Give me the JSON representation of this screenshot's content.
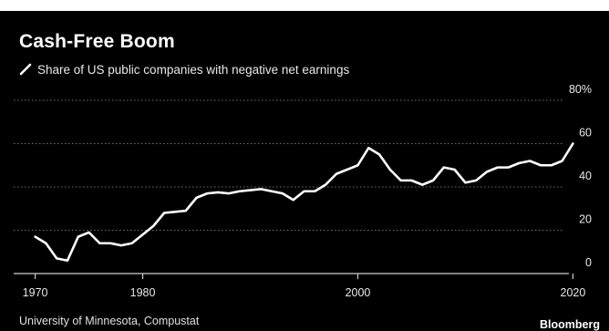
{
  "title": "Cash-Free Boom",
  "source": "University of Minnesota, Compustat",
  "brand": "Bloomberg",
  "colors": {
    "background": "#000000",
    "line": "#ffffff",
    "grid": "#6e6e6e"
  },
  "chart_data": {
    "type": "line",
    "title": "Cash-Free Boom",
    "xlabel": "",
    "ylabel": "",
    "xlim": [
      1968,
      2022
    ],
    "ylim": [
      0,
      80
    ],
    "x_ticks": [
      1970,
      1980,
      2000,
      2020
    ],
    "x_tick_labels": [
      "1970",
      "1980",
      "2000",
      "2020"
    ],
    "y_ticks": [
      0,
      20,
      40,
      60,
      80
    ],
    "y_tick_labels": [
      "0",
      "20",
      "40",
      "60",
      "80%"
    ],
    "grid": "horizontal dotted",
    "legend_placement": "top-left",
    "series": [
      {
        "name": "Share of US public companies with negative net earnings",
        "color": "#ffffff",
        "x": [
          1970,
          1971,
          1972,
          1973,
          1974,
          1975,
          1976,
          1977,
          1978,
          1979,
          1980,
          1981,
          1982,
          1983,
          1984,
          1985,
          1986,
          1987,
          1988,
          1989,
          1990,
          1991,
          1992,
          1993,
          1994,
          1995,
          1996,
          1997,
          1998,
          1999,
          2000,
          2001,
          2002,
          2003,
          2004,
          2005,
          2006,
          2007,
          2008,
          2009,
          2010,
          2011,
          2012,
          2013,
          2014,
          2015,
          2016,
          2017,
          2018,
          2019,
          2020
        ],
        "values": [
          17,
          14,
          7,
          6,
          17,
          19,
          14,
          14,
          13,
          14,
          18,
          22,
          28,
          28.5,
          29,
          35,
          37,
          37.5,
          37,
          38,
          38.5,
          39,
          38,
          37,
          34,
          38,
          38,
          41,
          46,
          48,
          50,
          58,
          55,
          48,
          43,
          43,
          41,
          43,
          49,
          48,
          42,
          43,
          47,
          49,
          49,
          51,
          52,
          50,
          50,
          52,
          60
        ]
      }
    ]
  }
}
